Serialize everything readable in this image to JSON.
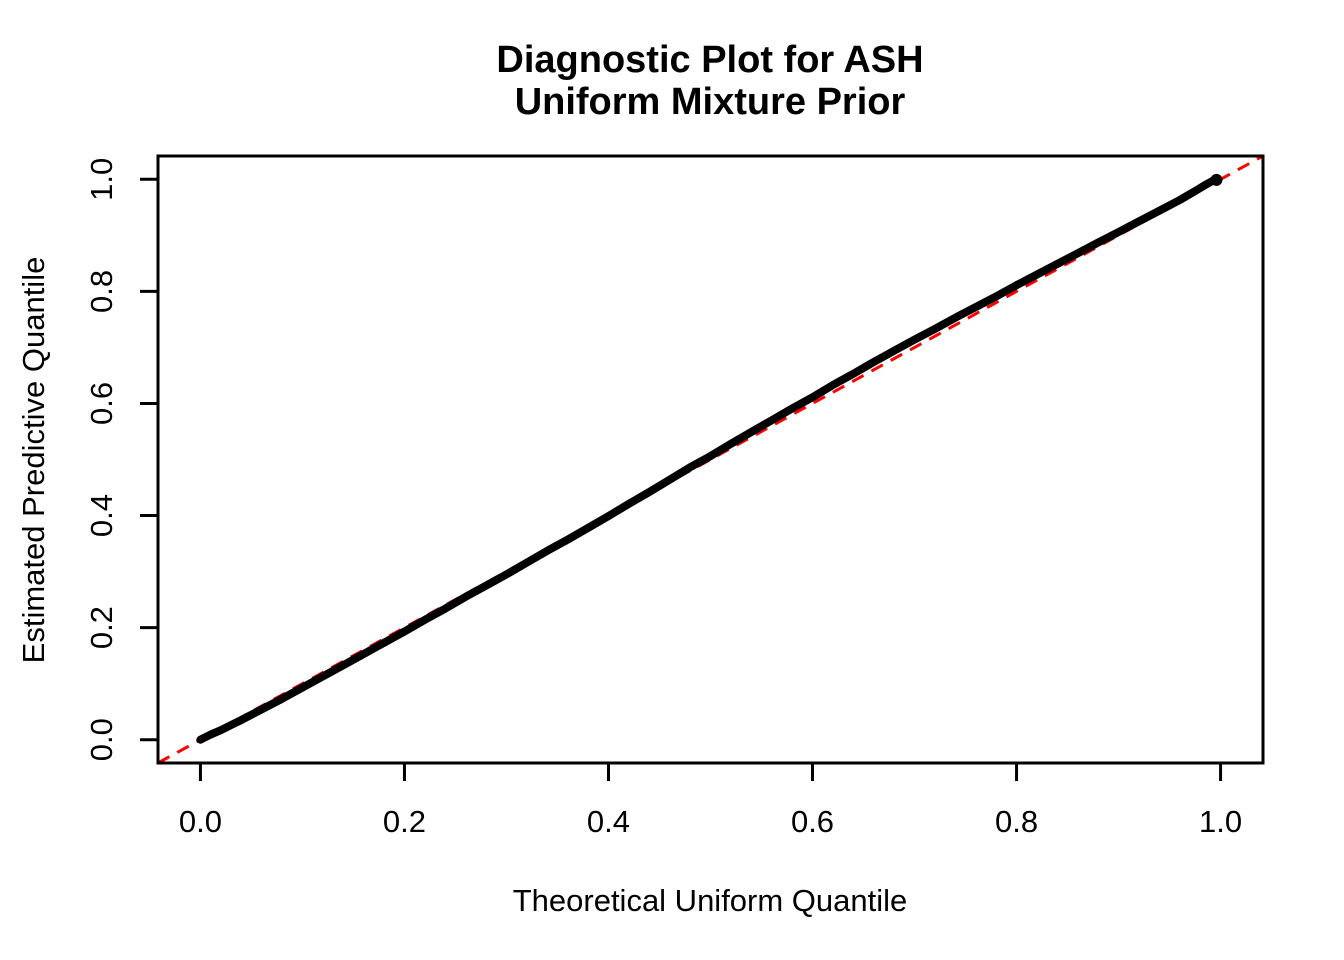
{
  "colors": {
    "background": "#FFFFFF",
    "text": "#000000",
    "curve": "#000000",
    "reference_line": "#FF0000",
    "axis": "#000000"
  },
  "chart_data": {
    "type": "line",
    "title": "Diagnostic Plot for ASH Uniform Mixture Prior",
    "title_lines": [
      "Diagnostic Plot for ASH",
      "Uniform Mixture Prior"
    ],
    "xlabel": "Theoretical Uniform Quantile",
    "ylabel": "Estimated Predictive Quantile",
    "xlim": [
      -0.0416,
      1.0416
    ],
    "ylim": [
      -0.0416,
      1.0416
    ],
    "x_ticks": [
      0.0,
      0.2,
      0.4,
      0.6,
      0.8,
      1.0
    ],
    "y_ticks": [
      0.0,
      0.2,
      0.4,
      0.6,
      0.8,
      1.0
    ],
    "x_tick_labels": [
      "0.0",
      "0.2",
      "0.4",
      "0.6",
      "0.8",
      "1.0"
    ],
    "y_tick_labels": [
      "0.0",
      "0.2",
      "0.4",
      "0.6",
      "0.8",
      "1.0"
    ],
    "grid": false,
    "legend": "none",
    "series": [
      {
        "name": "estimated-vs-theoretical-quantiles",
        "color": "#000000",
        "style": "thick-solid",
        "points": [
          [
            0.0,
            0.0
          ],
          [
            0.01,
            0.009
          ],
          [
            0.02,
            0.017
          ],
          [
            0.03,
            0.026
          ],
          [
            0.04,
            0.035
          ],
          [
            0.06,
            0.054
          ],
          [
            0.08,
            0.073
          ],
          [
            0.1,
            0.093
          ],
          [
            0.12,
            0.113
          ],
          [
            0.14,
            0.133
          ],
          [
            0.16,
            0.153
          ],
          [
            0.18,
            0.173
          ],
          [
            0.2,
            0.193
          ],
          [
            0.22,
            0.214
          ],
          [
            0.24,
            0.234
          ],
          [
            0.26,
            0.255
          ],
          [
            0.28,
            0.275
          ],
          [
            0.3,
            0.295
          ],
          [
            0.32,
            0.316
          ],
          [
            0.34,
            0.337
          ],
          [
            0.36,
            0.357
          ],
          [
            0.38,
            0.378
          ],
          [
            0.4,
            0.399
          ],
          [
            0.42,
            0.421
          ],
          [
            0.44,
            0.442
          ],
          [
            0.46,
            0.464
          ],
          [
            0.48,
            0.486
          ],
          [
            0.5,
            0.506
          ],
          [
            0.52,
            0.528
          ],
          [
            0.54,
            0.549
          ],
          [
            0.56,
            0.57
          ],
          [
            0.58,
            0.591
          ],
          [
            0.6,
            0.611
          ],
          [
            0.62,
            0.633
          ],
          [
            0.64,
            0.653
          ],
          [
            0.66,
            0.674
          ],
          [
            0.68,
            0.694
          ],
          [
            0.7,
            0.714
          ],
          [
            0.72,
            0.733
          ],
          [
            0.74,
            0.753
          ],
          [
            0.76,
            0.772
          ],
          [
            0.78,
            0.791
          ],
          [
            0.8,
            0.811
          ],
          [
            0.82,
            0.83
          ],
          [
            0.84,
            0.849
          ],
          [
            0.86,
            0.868
          ],
          [
            0.88,
            0.887
          ],
          [
            0.9,
            0.906
          ],
          [
            0.92,
            0.925
          ],
          [
            0.94,
            0.944
          ],
          [
            0.96,
            0.963
          ],
          [
            0.975,
            0.979
          ],
          [
            0.985,
            0.99
          ],
          [
            0.992,
            0.997
          ],
          [
            0.996,
            0.999
          ]
        ]
      },
      {
        "name": "reference-line-y-equals-x",
        "color": "#FF0000",
        "style": "dashed",
        "points": [
          [
            -0.0416,
            -0.0416
          ],
          [
            1.0416,
            1.0416
          ]
        ]
      }
    ]
  }
}
